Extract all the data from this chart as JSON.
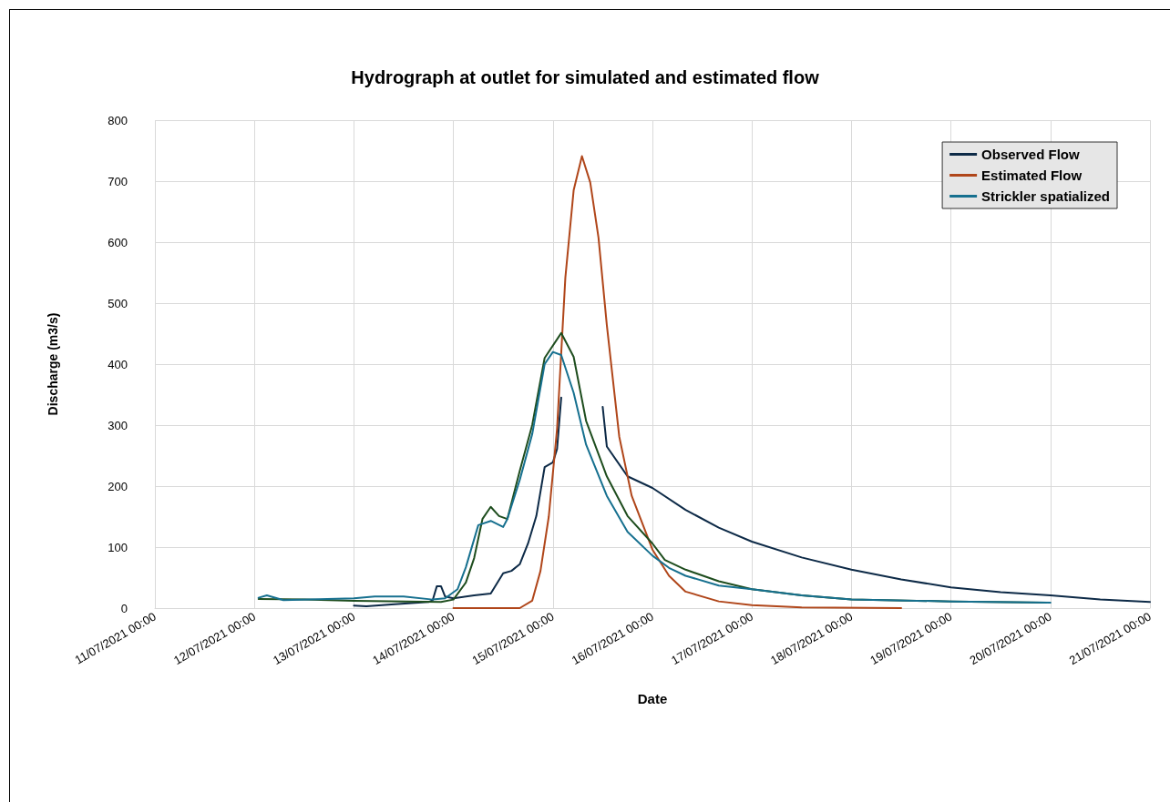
{
  "chart_data": {
    "type": "line",
    "title": "Hydrograph at outlet for simulated and estimated flow",
    "xlabel": "Date",
    "ylabel": "Discharge (m3/s)",
    "xlim": [
      "2021-07-11T00:00",
      "2021-07-21T00:00"
    ],
    "xticks": [
      {
        "value": "2021-07-11T00:00",
        "label": "11/07/2021 00:00"
      },
      {
        "value": "2021-07-12T00:00",
        "label": "12/07/2021 00:00"
      },
      {
        "value": "2021-07-13T00:00",
        "label": "13/07/2021 00:00"
      },
      {
        "value": "2021-07-14T00:00",
        "label": "14/07/2021 00:00"
      },
      {
        "value": "2021-07-15T00:00",
        "label": "15/07/2021 00:00"
      },
      {
        "value": "2021-07-16T00:00",
        "label": "16/07/2021 00:00"
      },
      {
        "value": "2021-07-17T00:00",
        "label": "17/07/2021 00:00"
      },
      {
        "value": "2021-07-18T00:00",
        "label": "18/07/2021 00:00"
      },
      {
        "value": "2021-07-19T00:00",
        "label": "19/07/2021 00:00"
      },
      {
        "value": "2021-07-20T00:00",
        "label": "20/07/2021 00:00"
      },
      {
        "value": "2021-07-21T00:00",
        "label": "21/07/2021 00:00"
      }
    ],
    "ylim": [
      0,
      800
    ],
    "yticks": [
      0,
      100,
      200,
      300,
      400,
      500,
      600,
      700,
      800
    ],
    "grid": true,
    "legend": "top right",
    "marker": "none",
    "line_style": "solid",
    "series": [
      {
        "name": "Observed Flow",
        "color": "#0d2a47",
        "x": [
          "2021-07-13T00:00",
          "2021-07-13T03:00",
          "2021-07-13T09:00",
          "2021-07-13T18:00",
          "2021-07-13T19:00",
          "2021-07-13T20:00",
          "2021-07-13T21:00",
          "2021-07-13T22:00",
          "2021-07-14T00:00",
          "2021-07-14T05:00",
          "2021-07-14T09:00",
          "2021-07-14T12:00",
          "2021-07-14T14:00",
          "2021-07-14T16:00",
          "2021-07-14T18:00",
          "2021-07-14T20:00",
          "2021-07-14T22:00",
          "2021-07-15T00:00",
          "2021-07-15T01:00",
          "2021-07-15T02:00",
          "2021-07-15T03:00",
          "2021-07-15T12:00",
          "2021-07-15T13:00",
          "2021-07-15T18:00",
          "2021-07-16T00:00",
          "2021-07-16T08:00",
          "2021-07-16T16:00",
          "2021-07-17T00:00",
          "2021-07-17T12:00",
          "2021-07-18T00:00",
          "2021-07-18T12:00",
          "2021-07-19T00:00",
          "2021-07-19T12:00",
          "2021-07-20T00:00",
          "2021-07-20T12:00",
          "2021-07-21T00:00"
        ],
        "values": [
          4,
          3,
          6,
          10,
          13,
          36,
          36,
          19,
          16,
          21,
          24,
          57,
          61,
          72,
          106,
          151,
          231,
          239,
          261,
          345,
          null,
          330,
          265,
          216,
          197,
          161,
          132,
          109,
          83,
          63,
          47,
          34,
          26,
          21,
          14,
          10
        ]
      },
      {
        "name": "Estimated Flow",
        "color": "#b0461a",
        "x": [
          "2021-07-14T00:00",
          "2021-07-14T16:00",
          "2021-07-14T19:00",
          "2021-07-14T21:00",
          "2021-07-14T23:00",
          "2021-07-15T01:00",
          "2021-07-15T03:00",
          "2021-07-15T05:00",
          "2021-07-15T07:00",
          "2021-07-15T09:00",
          "2021-07-15T11:00",
          "2021-07-15T13:00",
          "2021-07-15T16:00",
          "2021-07-15T19:00",
          "2021-07-16T00:00",
          "2021-07-16T04:00",
          "2021-07-16T08:00",
          "2021-07-16T16:00",
          "2021-07-17T00:00",
          "2021-07-17T12:00",
          "2021-07-18T12:00"
        ],
        "values": [
          0,
          0,
          12,
          61,
          150,
          294,
          542,
          685,
          741,
          698,
          607,
          464,
          281,
          184,
          96,
          53,
          27,
          11,
          5,
          1,
          0
        ]
      },
      {
        "color": "#1e4d1e",
        "x": [
          "2021-07-12T01:00",
          "2021-07-12T12:00",
          "2021-07-13T00:00",
          "2021-07-13T21:00",
          "2021-07-14T00:00",
          "2021-07-14T03:00",
          "2021-07-14T05:00",
          "2021-07-14T07:00",
          "2021-07-14T09:00",
          "2021-07-14T11:00",
          "2021-07-14T13:00",
          "2021-07-14T16:00",
          "2021-07-14T19:00",
          "2021-07-14T22:00",
          "2021-07-15T02:00",
          "2021-07-15T05:00",
          "2021-07-15T08:00",
          "2021-07-15T13:00",
          "2021-07-15T18:00",
          "2021-07-16T00:00",
          "2021-07-16T03:00",
          "2021-07-16T08:00",
          "2021-07-16T16:00",
          "2021-07-17T00:00",
          "2021-07-17T12:00",
          "2021-07-18T00:00",
          "2021-07-19T00:00",
          "2021-07-19T23:00"
        ],
        "values": [
          15,
          14,
          12,
          10,
          14,
          42,
          82,
          146,
          166,
          151,
          146,
          225,
          300,
          410,
          451,
          412,
          307,
          216,
          151,
          106,
          79,
          63,
          44,
          31,
          21,
          14,
          11,
          9
        ]
      },
      {
        "name": "Strickler spatialized",
        "color": "#16708f",
        "x": [
          "2021-07-12T01:00",
          "2021-07-12T03:00",
          "2021-07-12T07:00",
          "2021-07-13T00:00",
          "2021-07-13T05:00",
          "2021-07-13T12:00",
          "2021-07-13T19:00",
          "2021-07-13T22:00",
          "2021-07-14T01:00",
          "2021-07-14T03:00",
          "2021-07-14T06:00",
          "2021-07-14T09:00",
          "2021-07-14T12:00",
          "2021-07-14T13:00",
          "2021-07-14T16:00",
          "2021-07-14T19:00",
          "2021-07-14T22:00",
          "2021-07-15T00:00",
          "2021-07-15T02:00",
          "2021-07-15T05:00",
          "2021-07-15T08:00",
          "2021-07-15T13:00",
          "2021-07-15T18:00",
          "2021-07-16T00:00",
          "2021-07-16T04:00",
          "2021-07-16T08:00",
          "2021-07-16T16:00",
          "2021-07-17T00:00",
          "2021-07-17T12:00",
          "2021-07-18T00:00",
          "2021-07-19T00:00",
          "2021-07-20T00:00"
        ],
        "values": [
          17,
          21,
          13,
          16,
          19,
          19,
          14,
          16,
          31,
          67,
          136,
          143,
          133,
          146,
          210,
          285,
          400,
          420,
          415,
          353,
          268,
          184,
          125,
          86,
          66,
          53,
          37,
          31,
          21,
          14,
          11,
          9
        ]
      }
    ]
  }
}
